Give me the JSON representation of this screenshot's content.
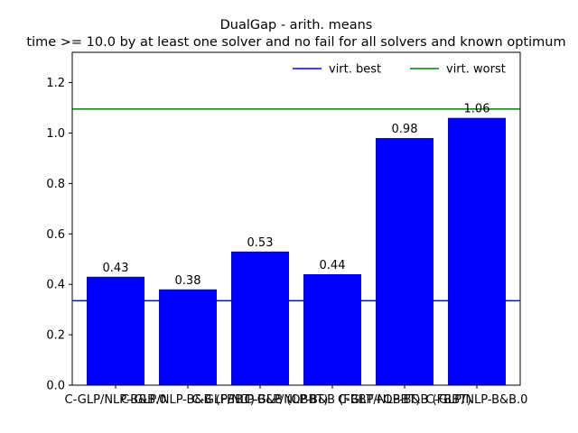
{
  "chart_data": {
    "type": "bar",
    "title": "DualGap - arith. means",
    "subtitle": "time >= 10.0 by at least one solver and no fail for all solvers and known optimum",
    "xlabel": "",
    "ylabel": "",
    "categories": [
      "C-GLP/NLP-B&B.0",
      "C-GLP/NLP-B&B (FBBT)",
      "C-GLP/NLP-B&B (OBBT)",
      "C-GLP/NLP-B&B (FBBT+OBBT)",
      "C-GLP/NLP-B&B (FBBT)",
      "C-GLP/NLP-B&B.0"
    ],
    "values": [
      0.43,
      0.38,
      0.53,
      0.44,
      0.98,
      1.06
    ],
    "value_labels": [
      "0.43",
      "0.38",
      "0.53",
      "0.44",
      "0.98",
      "1.06"
    ],
    "bar_color": "#0000ff",
    "ylim": [
      0,
      1.32
    ],
    "yticks": [
      0.0,
      0.2,
      0.4,
      0.6,
      0.8,
      1.0,
      1.2
    ],
    "ytick_labels": [
      "0.0",
      "0.2",
      "0.4",
      "0.6",
      "0.8",
      "1.0",
      "1.2"
    ],
    "reference_lines": [
      {
        "name": "virt. best",
        "value": 0.335,
        "color": "#0000ff"
      },
      {
        "name": "virt. worst",
        "value": 1.095,
        "color": "#008000"
      }
    ],
    "legend": {
      "placement": "top-right",
      "entries": [
        "virt. best",
        "virt. worst"
      ]
    },
    "grid": false
  }
}
